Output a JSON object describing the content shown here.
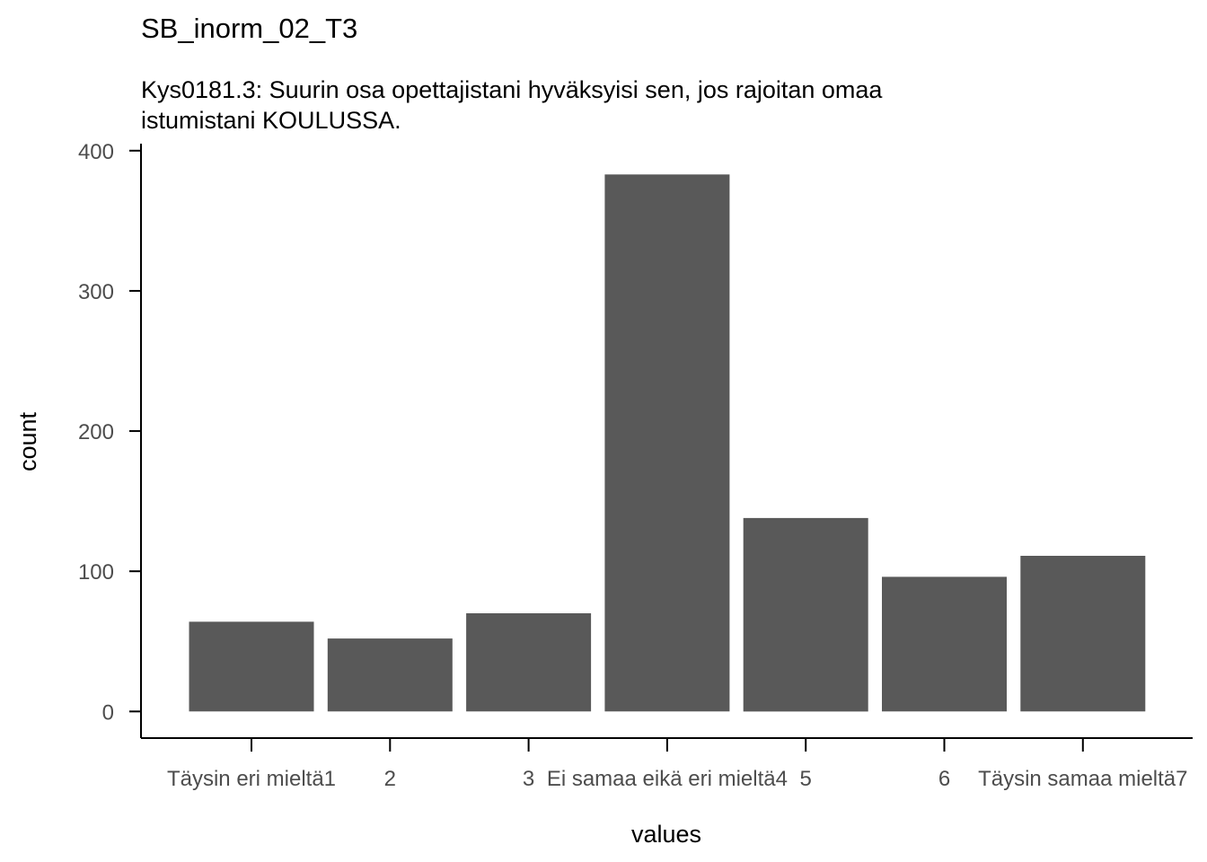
{
  "chart_data": {
    "type": "bar",
    "title": "SB_inorm_02_T3",
    "subtitle": [
      "Kys0181.3: Suurin osa opettajistani hyväksyisi sen, jos rajoitan omaa",
      "istumistani KOULUSSA."
    ],
    "xlabel": "values",
    "ylabel": "count",
    "categories": [
      "Täysin eri mieltä1",
      "2",
      "3",
      "Ei samaa eikä eri mieltä4",
      "5",
      "6",
      "Täysin samaa mieltä7"
    ],
    "values": [
      64,
      52,
      70,
      383,
      138,
      96,
      111
    ],
    "ylim": [
      -19,
      405
    ],
    "yticks": [
      0,
      100,
      200,
      300,
      400
    ],
    "bar_color": "#595959",
    "grid": false
  }
}
